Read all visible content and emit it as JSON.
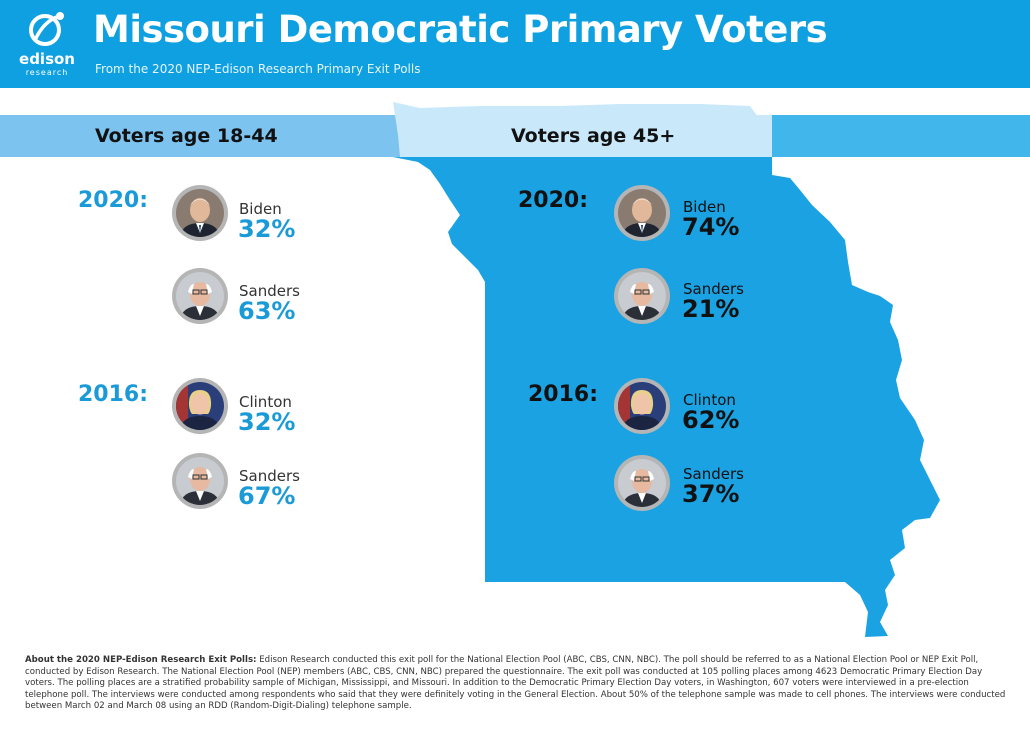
{
  "header": {
    "logo_text": "edison",
    "logo_sub": "research",
    "title": "Missouri Democratic Primary Voters",
    "subtitle": "From the 2020 NEP-Edison Research Primary Exit Polls"
  },
  "colors": {
    "brand_blue": "#0ea0e0",
    "map_blue": "#1aa2e3",
    "left_bar": "#7cc3ef",
    "mid_bar": "#c9e9fb",
    "percent_blue": "#1b9ad8"
  },
  "columns": [
    {
      "title": "Voters age 18-44",
      "groups": [
        {
          "year": "2020:",
          "candidates": [
            {
              "name": "Biden",
              "percent": "32%",
              "icon": "biden-portrait"
            },
            {
              "name": "Sanders",
              "percent": "63%",
              "icon": "sanders-portrait"
            }
          ]
        },
        {
          "year": "2016:",
          "candidates": [
            {
              "name": "Clinton",
              "percent": "32%",
              "icon": "clinton-portrait"
            },
            {
              "name": "Sanders",
              "percent": "67%",
              "icon": "sanders-portrait"
            }
          ]
        }
      ]
    },
    {
      "title": "Voters age 45+",
      "groups": [
        {
          "year": "2020:",
          "candidates": [
            {
              "name": "Biden",
              "percent": "74%",
              "icon": "biden-portrait"
            },
            {
              "name": "Sanders",
              "percent": "21%",
              "icon": "sanders-portrait"
            }
          ]
        },
        {
          "year": "2016:",
          "candidates": [
            {
              "name": "Clinton",
              "percent": "62%",
              "icon": "clinton-portrait"
            },
            {
              "name": "Sanders",
              "percent": "37%",
              "icon": "sanders-portrait"
            }
          ]
        }
      ]
    }
  ],
  "footer": {
    "heading": "About the 2020 NEP-Edison Research Exit Polls:",
    "body": " Edison Research conducted this exit poll for the National Election Pool (ABC, CBS, CNN, NBC). The poll should be referred to as a National Election Pool or NEP Exit Poll, conducted by Edison Research. The National Election Pool (NEP) members (ABC, CBS, CNN, NBC) prepared the questionnaire. The exit poll was conducted at 105 polling places among 4623 Democratic Primary Election Day voters. The polling places are a stratified probability sample of Michigan, Mississippi, and Missouri. In addition to the Democratic Primary Election Day voters, in Washington, 607 voters were interviewed in a pre-election telephone poll.  The interviews were conducted among respondents who said that they were definitely voting in the General Election.  About 50% of the telephone sample was made to cell phones.  The interviews were conducted between March 02 and March 08 using an RDD (Random-Digit-Dialing) telephone sample."
  }
}
